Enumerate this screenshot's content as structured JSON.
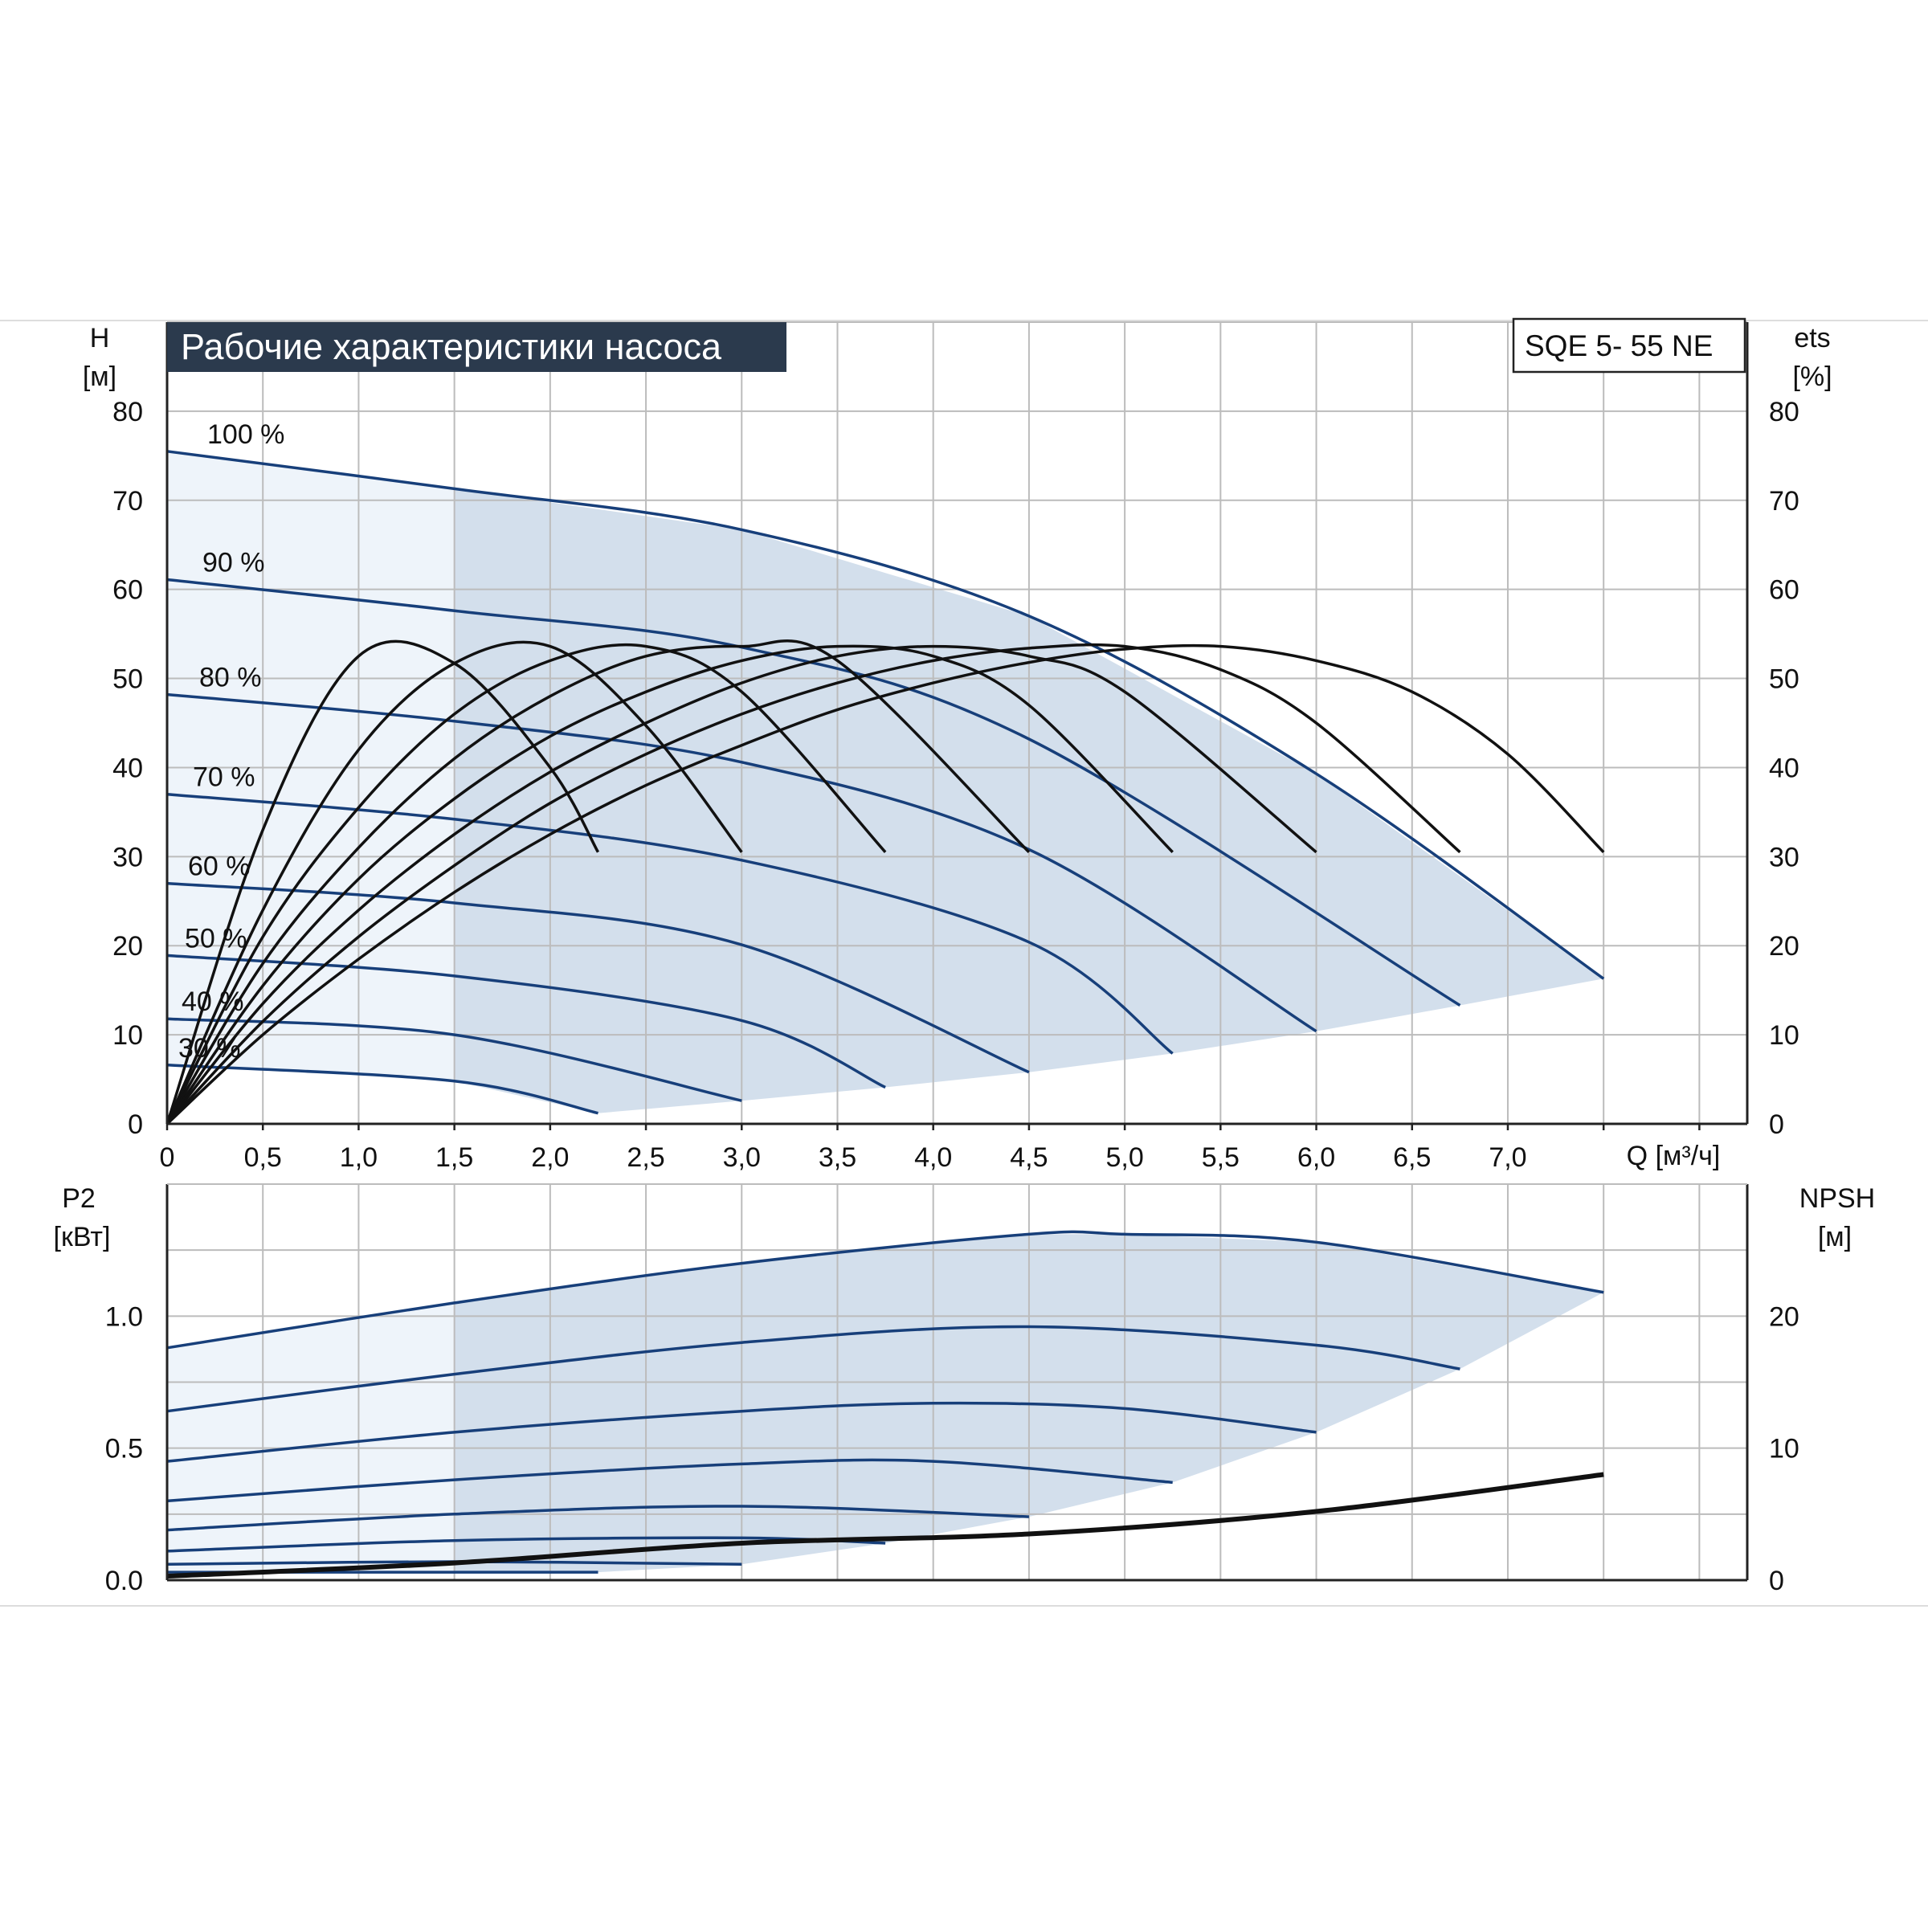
{
  "title": "Рабочие характеристики насоса",
  "model": "SQE 5- 55 NE",
  "colors": {
    "curve": "#173f7a",
    "efficiency": "#111111",
    "band_dark": "#d3dfec",
    "band_light": "#eef4fa",
    "grid": "#bcbcbc",
    "title_bg": "#2b3a4d"
  },
  "chart_data": [
    {
      "type": "line",
      "name": "head",
      "xlabel": "Q [м³/ч]",
      "ylabel_left": "H",
      "ylabel_left_unit": "[м]",
      "ylabel_right": "ets",
      "ylabel_right_unit": "[%]",
      "xlim": [
        0,
        8.25
      ],
      "ylim": [
        0,
        90
      ],
      "x_ticks": [
        0,
        0.5,
        1.0,
        1.5,
        2.0,
        2.5,
        3.0,
        3.5,
        4.0,
        4.5,
        5.0,
        5.5,
        6.0,
        6.5,
        7.0
      ],
      "x_tick_labels": [
        "0",
        "0,5",
        "1,0",
        "1,5",
        "2,0",
        "2,5",
        "3,0",
        "3,5",
        "4,0",
        "4,5",
        "5,0",
        "5,5",
        "6,0",
        "6,5",
        "7,0"
      ],
      "y_ticks": [
        0,
        10,
        20,
        30,
        40,
        50,
        60,
        70,
        80
      ],
      "y_tick_labels": [
        "0",
        "10",
        "20",
        "30",
        "40",
        "50",
        "60",
        "70",
        "80"
      ],
      "grid": true,
      "series": [
        {
          "name": "100 %",
          "x": [
            0,
            1.5,
            3.0,
            4.5,
            6.0,
            7.5
          ],
          "y": [
            75.5,
            71.3,
            66.7,
            57.0,
            39.3,
            16.3
          ]
        },
        {
          "name": "90 %",
          "x": [
            0,
            1.5,
            3.0,
            4.5,
            6.75
          ],
          "y": [
            61.1,
            57.6,
            53.5,
            43.2,
            13.3
          ]
        },
        {
          "name": "80 %",
          "x": [
            0,
            1.5,
            3.0,
            4.5,
            6.0
          ],
          "y": [
            48.2,
            45.2,
            40.6,
            30.8,
            10.4
          ]
        },
        {
          "name": "70 %",
          "x": [
            0,
            1.5,
            3.0,
            4.5,
            5.25
          ],
          "y": [
            37.0,
            34.2,
            29.6,
            20.4,
            7.9
          ]
        },
        {
          "name": "60 %",
          "x": [
            0,
            1.5,
            3.0,
            4.5
          ],
          "y": [
            27.0,
            24.8,
            20.1,
            5.8
          ]
        },
        {
          "name": "50 %",
          "x": [
            0,
            1.5,
            3.0,
            3.75
          ],
          "y": [
            18.9,
            16.6,
            11.6,
            4.1
          ]
        },
        {
          "name": "40 %",
          "x": [
            0,
            1.5,
            3.0
          ],
          "y": [
            11.8,
            10.0,
            2.6
          ]
        },
        {
          "name": "30 %",
          "x": [
            0,
            1.5,
            2.25
          ],
          "y": [
            6.6,
            4.8,
            1.2
          ]
        }
      ],
      "efficiency_curves": [
        {
          "x": [
            0,
            0.5,
            1.0,
            1.5,
            2.0,
            2.25
          ],
          "y": [
            0,
            33.0,
            52.5,
            51.7,
            40.0,
            30.5
          ]
        },
        {
          "x": [
            0,
            0.5,
            1.0,
            1.5,
            2.0,
            2.5,
            3.0
          ],
          "y": [
            0,
            24.0,
            42.0,
            51.7,
            53.6,
            44.7,
            30.5
          ]
        },
        {
          "x": [
            0,
            0.5,
            1.0,
            1.5,
            2.0,
            2.5,
            3.0,
            3.75
          ],
          "y": [
            0,
            21.0,
            35.5,
            46.0,
            52.0,
            53.6,
            48.5,
            30.5
          ]
        },
        {
          "x": [
            0,
            0.5,
            1.0,
            1.5,
            2.0,
            2.5,
            3.0,
            3.5,
            4.5
          ],
          "y": [
            0,
            18.0,
            31.0,
            41.0,
            48.0,
            52.5,
            53.6,
            52.0,
            30.5
          ]
        },
        {
          "x": [
            0,
            0.5,
            1.0,
            1.5,
            2.0,
            2.5,
            3.0,
            3.5,
            4.0,
            4.5,
            5.25
          ],
          "y": [
            0,
            15.5,
            27.5,
            36.5,
            43.5,
            48.5,
            52.0,
            53.6,
            52.5,
            47.0,
            30.5
          ]
        },
        {
          "x": [
            0,
            0.5,
            1.0,
            1.5,
            2.0,
            2.5,
            3.0,
            3.5,
            4.0,
            4.5,
            5.0,
            6.0
          ],
          "y": [
            0,
            13.5,
            24.0,
            32.5,
            39.5,
            45.0,
            49.5,
            52.5,
            53.6,
            52.5,
            48.5,
            30.5
          ]
        },
        {
          "x": [
            0,
            0.5,
            1.0,
            1.5,
            2.0,
            2.5,
            3.0,
            3.5,
            4.0,
            4.5,
            5.0,
            5.5,
            6.0,
            6.75
          ],
          "y": [
            0,
            11.5,
            21.0,
            29.0,
            36.0,
            41.5,
            46.0,
            49.5,
            52.0,
            53.4,
            53.6,
            51.0,
            45.0,
            30.5
          ]
        },
        {
          "x": [
            0,
            0.5,
            1.0,
            1.5,
            2.0,
            2.5,
            3.0,
            3.5,
            4.0,
            4.5,
            5.0,
            5.5,
            6.0,
            6.5,
            7.0,
            7.5
          ],
          "y": [
            0,
            10.0,
            18.5,
            26.0,
            32.5,
            38.0,
            42.5,
            46.5,
            49.5,
            51.8,
            53.3,
            53.6,
            52.0,
            48.5,
            41.5,
            30.5
          ]
        }
      ]
    },
    {
      "type": "line",
      "name": "power",
      "xlabel": "",
      "ylabel_left": "P2",
      "ylabel_left_unit": "[кВт]",
      "ylabel_right": "NPSH",
      "ylabel_right_unit": "[м]",
      "xlim": [
        0,
        8.25
      ],
      "ylim_left": [
        0,
        1.5
      ],
      "ylim_right": [
        0,
        30
      ],
      "y_ticks_left": [
        0.0,
        0.5,
        1.0
      ],
      "y_tick_labels_left": [
        "0.0",
        "0.5",
        "1.0"
      ],
      "y_ticks_right": [
        0,
        10,
        20
      ],
      "y_tick_labels_right": [
        "0",
        "10",
        "20"
      ],
      "grid": true,
      "series": [
        {
          "name": "100 %",
          "x": [
            0,
            1.5,
            3.0,
            4.5,
            5.0,
            6.0,
            7.5
          ],
          "y": [
            0.88,
            1.05,
            1.2,
            1.31,
            1.31,
            1.28,
            1.09
          ]
        },
        {
          "name": "90 %",
          "x": [
            0,
            1.5,
            3.0,
            4.5,
            6.0,
            6.75
          ],
          "y": [
            0.64,
            0.78,
            0.9,
            0.96,
            0.89,
            0.8
          ]
        },
        {
          "name": "80 %",
          "x": [
            0,
            1.5,
            3.0,
            4.0,
            5.0,
            6.0
          ],
          "y": [
            0.45,
            0.56,
            0.64,
            0.67,
            0.65,
            0.56
          ]
        },
        {
          "name": "70 %",
          "x": [
            0,
            1.5,
            3.0,
            4.0,
            5.25
          ],
          "y": [
            0.3,
            0.38,
            0.44,
            0.45,
            0.37
          ]
        },
        {
          "name": "60 %",
          "x": [
            0,
            1.5,
            3.0,
            4.5
          ],
          "y": [
            0.19,
            0.25,
            0.28,
            0.24
          ]
        },
        {
          "name": "50 %",
          "x": [
            0,
            1.5,
            3.0,
            3.75
          ],
          "y": [
            0.11,
            0.15,
            0.16,
            0.14
          ]
        },
        {
          "name": "40 %",
          "x": [
            0,
            1.5,
            3.0
          ],
          "y": [
            0.06,
            0.07,
            0.06
          ]
        },
        {
          "name": "30 %",
          "x": [
            0,
            1.5,
            2.25
          ],
          "y": [
            0.03,
            0.03,
            0.03
          ]
        }
      ],
      "npsh": {
        "x": [
          0,
          1.5,
          3.0,
          4.5,
          6.0,
          7.5
        ],
        "y": [
          0.3,
          1.3,
          2.8,
          3.5,
          5.2,
          8.0
        ]
      }
    }
  ]
}
